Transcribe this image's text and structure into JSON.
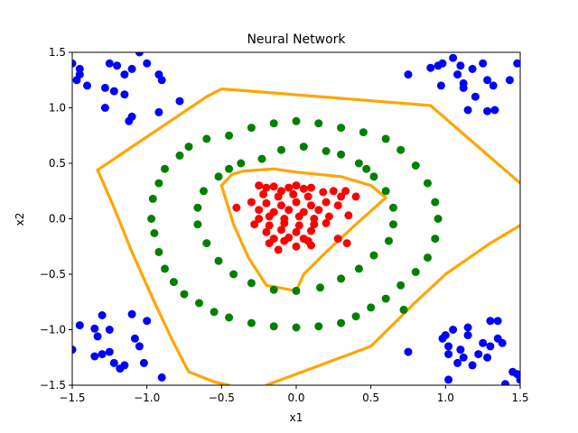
{
  "chart_data": {
    "type": "scatter",
    "title": "Neural Network",
    "xlabel": "x1",
    "ylabel": "x2",
    "xlim": [
      -1.5,
      1.5
    ],
    "ylim": [
      -1.5,
      1.5
    ],
    "xticks": [
      -1.5,
      -1.0,
      -0.5,
      0.0,
      0.5,
      1.0,
      1.5
    ],
    "yticks": [
      -1.5,
      -1.0,
      -0.5,
      0.0,
      0.5,
      1.0,
      1.5
    ],
    "xtick_labels": [
      "−1.5",
      "−1.0",
      "−0.5",
      "0.0",
      "0.5",
      "1.0",
      "1.5"
    ],
    "ytick_labels": [
      "−1.5",
      "−1.0",
      "−0.5",
      "0.0",
      "0.5",
      "1.0",
      "1.5"
    ],
    "grid": false,
    "colors": {
      "blue": "#0000ff",
      "green": "#008000",
      "red": "#ff0000",
      "boundary": "#ffa500"
    },
    "series": [
      {
        "name": "red-cluster",
        "color": "#ff0000",
        "points": [
          [
            -0.25,
            0.3
          ],
          [
            -0.2,
            0.28
          ],
          [
            -0.15,
            0.29
          ],
          [
            -0.1,
            0.25
          ],
          [
            -0.05,
            0.28
          ],
          [
            0.0,
            0.3
          ],
          [
            0.05,
            0.27
          ],
          [
            0.1,
            0.28
          ],
          [
            -0.22,
            0.22
          ],
          [
            -0.12,
            0.2
          ],
          [
            -0.02,
            0.22
          ],
          [
            0.08,
            0.2
          ],
          [
            0.18,
            0.24
          ],
          [
            0.25,
            0.25
          ],
          [
            0.3,
            0.2
          ],
          [
            0.33,
            0.25
          ],
          [
            0.4,
            0.2
          ],
          [
            -0.3,
            0.15
          ],
          [
            -0.2,
            0.14
          ],
          [
            -0.1,
            0.12
          ],
          [
            0.0,
            0.15
          ],
          [
            0.1,
            0.12
          ],
          [
            0.2,
            0.15
          ],
          [
            0.28,
            0.12
          ],
          [
            -0.25,
            0.08
          ],
          [
            -0.15,
            0.06
          ],
          [
            -0.05,
            0.08
          ],
          [
            0.05,
            0.06
          ],
          [
            0.15,
            0.08
          ],
          [
            -0.4,
            0.1
          ],
          [
            -0.25,
            0.0
          ],
          [
            -0.18,
            0.02
          ],
          [
            -0.08,
            0.0
          ],
          [
            0.02,
            0.02
          ],
          [
            0.12,
            0.0
          ],
          [
            0.22,
            0.02
          ],
          [
            0.35,
            0.03
          ],
          [
            -0.28,
            -0.05
          ],
          [
            -0.18,
            -0.06
          ],
          [
            -0.08,
            -0.04
          ],
          [
            0.02,
            -0.06
          ],
          [
            0.12,
            -0.05
          ],
          [
            0.2,
            -0.04
          ],
          [
            -0.2,
            -0.12
          ],
          [
            -0.1,
            -0.1
          ],
          [
            0.0,
            -0.12
          ],
          [
            0.1,
            -0.11
          ],
          [
            -0.15,
            -0.18
          ],
          [
            -0.05,
            -0.17
          ],
          [
            0.05,
            -0.18
          ],
          [
            -0.18,
            -0.22
          ],
          [
            -0.08,
            -0.2
          ],
          [
            0.08,
            -0.2
          ],
          [
            0.28,
            -0.18
          ],
          [
            0.34,
            -0.22
          ],
          [
            0.1,
            -0.24
          ],
          [
            -0.12,
            -0.28
          ],
          [
            0.0,
            -0.25
          ]
        ]
      },
      {
        "name": "green-inner-ring",
        "color": "#008000",
        "points": [
          [
            -0.37,
            0.5
          ],
          [
            -0.23,
            0.54
          ],
          [
            -0.1,
            0.62
          ],
          [
            0.05,
            0.65
          ],
          [
            0.2,
            0.61
          ],
          [
            0.3,
            0.58
          ],
          [
            0.42,
            0.5
          ],
          [
            0.52,
            0.38
          ],
          [
            0.6,
            0.25
          ],
          [
            0.65,
            0.1
          ],
          [
            0.65,
            -0.05
          ],
          [
            0.62,
            -0.2
          ],
          [
            0.52,
            -0.33
          ],
          [
            0.42,
            -0.45
          ],
          [
            0.3,
            -0.54
          ],
          [
            0.16,
            -0.62
          ],
          [
            0.0,
            -0.65
          ],
          [
            -0.15,
            -0.64
          ],
          [
            -0.3,
            -0.58
          ],
          [
            -0.42,
            -0.5
          ],
          [
            -0.52,
            -0.38
          ],
          [
            -0.6,
            -0.22
          ],
          [
            -0.66,
            -0.05
          ],
          [
            -0.66,
            0.1
          ],
          [
            -0.62,
            0.25
          ],
          [
            -0.52,
            0.38
          ],
          [
            -0.45,
            0.45
          ],
          [
            0.47,
            0.45
          ]
        ]
      },
      {
        "name": "green-outer-ring",
        "color": "#008000",
        "points": [
          [
            -0.45,
            0.75
          ],
          [
            -0.3,
            0.82
          ],
          [
            -0.15,
            0.86
          ],
          [
            0.0,
            0.88
          ],
          [
            0.15,
            0.86
          ],
          [
            0.3,
            0.82
          ],
          [
            0.45,
            0.78
          ],
          [
            0.6,
            0.72
          ],
          [
            0.7,
            0.62
          ],
          [
            0.8,
            0.48
          ],
          [
            0.88,
            0.32
          ],
          [
            0.93,
            0.15
          ],
          [
            0.95,
            0.0
          ],
          [
            0.93,
            -0.18
          ],
          [
            0.88,
            -0.35
          ],
          [
            0.8,
            -0.48
          ],
          [
            0.7,
            -0.6
          ],
          [
            0.6,
            -0.72
          ],
          [
            0.5,
            -0.8
          ],
          [
            0.4,
            -0.88
          ],
          [
            0.3,
            -0.94
          ],
          [
            0.15,
            -0.97
          ],
          [
            0.0,
            -0.98
          ],
          [
            -0.15,
            -0.97
          ],
          [
            -0.3,
            -0.94
          ],
          [
            -0.45,
            -0.89
          ],
          [
            -0.55,
            -0.84
          ],
          [
            -0.65,
            -0.76
          ],
          [
            -0.75,
            -0.68
          ],
          [
            -0.82,
            -0.57
          ],
          [
            -0.88,
            -0.45
          ],
          [
            -0.92,
            -0.3
          ],
          [
            -0.95,
            -0.13
          ],
          [
            -0.97,
            0.0
          ],
          [
            -0.96,
            0.18
          ],
          [
            -0.92,
            0.32
          ],
          [
            -0.88,
            0.45
          ],
          [
            -0.78,
            0.57
          ],
          [
            -0.72,
            0.65
          ],
          [
            -0.6,
            0.72
          ],
          [
            0.72,
            -0.82
          ]
        ]
      },
      {
        "name": "blue-corners",
        "color": "#0000ff",
        "points": [
          [
            -1.5,
            1.4
          ],
          [
            -1.45,
            1.35
          ],
          [
            -1.45,
            1.3
          ],
          [
            -1.47,
            1.25
          ],
          [
            -1.4,
            1.2
          ],
          [
            -1.25,
            1.4
          ],
          [
            -1.2,
            1.38
          ],
          [
            -1.15,
            1.3
          ],
          [
            -1.1,
            1.35
          ],
          [
            -1.05,
            1.5
          ],
          [
            -1.0,
            1.4
          ],
          [
            -1.28,
            1.18
          ],
          [
            -1.22,
            1.15
          ],
          [
            -1.15,
            1.12
          ],
          [
            -1.28,
            1.0
          ],
          [
            -1.1,
            0.92
          ],
          [
            -1.12,
            0.88
          ],
          [
            -0.92,
            1.3
          ],
          [
            -0.9,
            1.25
          ],
          [
            -0.92,
            0.96
          ],
          [
            -0.78,
            1.06
          ],
          [
            0.75,
            1.3
          ],
          [
            0.9,
            1.36
          ],
          [
            0.95,
            1.38
          ],
          [
            0.98,
            1.4
          ],
          [
            1.05,
            1.45
          ],
          [
            1.1,
            1.38
          ],
          [
            0.97,
            1.2
          ],
          [
            1.08,
            1.3
          ],
          [
            1.12,
            1.22
          ],
          [
            1.12,
            1.18
          ],
          [
            1.18,
            1.35
          ],
          [
            1.25,
            1.4
          ],
          [
            1.28,
            1.25
          ],
          [
            1.2,
            1.1
          ],
          [
            1.32,
            1.2
          ],
          [
            1.43,
            1.25
          ],
          [
            1.48,
            1.4
          ],
          [
            1.15,
            0.98
          ],
          [
            1.28,
            0.97
          ],
          [
            1.33,
            0.98
          ],
          [
            -1.5,
            -1.18
          ],
          [
            -1.45,
            -0.96
          ],
          [
            -1.35,
            -0.99
          ],
          [
            -1.33,
            -1.06
          ],
          [
            -1.3,
            -0.87
          ],
          [
            -1.35,
            -1.24
          ],
          [
            -1.3,
            -1.22
          ],
          [
            -1.25,
            -1.0
          ],
          [
            -1.25,
            -1.2
          ],
          [
            -1.22,
            -1.3
          ],
          [
            -1.18,
            -1.35
          ],
          [
            -1.15,
            -1.32
          ],
          [
            -1.1,
            -0.86
          ],
          [
            -1.08,
            -1.08
          ],
          [
            -1.05,
            -1.15
          ],
          [
            -1.0,
            -0.92
          ],
          [
            -1.02,
            -1.3
          ],
          [
            -0.9,
            -1.43
          ],
          [
            0.75,
            -1.2
          ],
          [
            0.98,
            -1.08
          ],
          [
            1.0,
            -1.05
          ],
          [
            1.02,
            -1.15
          ],
          [
            1.02,
            -1.22
          ],
          [
            1.05,
            -1.0
          ],
          [
            1.08,
            -1.3
          ],
          [
            1.1,
            -1.18
          ],
          [
            1.12,
            -1.25
          ],
          [
            1.15,
            -1.05
          ],
          [
            1.15,
            -0.98
          ],
          [
            1.18,
            -1.32
          ],
          [
            1.22,
            -1.22
          ],
          [
            1.25,
            -1.12
          ],
          [
            1.28,
            -1.25
          ],
          [
            1.3,
            -1.15
          ],
          [
            1.3,
            -0.92
          ],
          [
            1.35,
            -0.92
          ],
          [
            1.35,
            -1.08
          ],
          [
            1.38,
            -1.12
          ],
          [
            1.45,
            -1.38
          ],
          [
            1.48,
            -1.4
          ],
          [
            1.5,
            -1.45
          ],
          [
            1.02,
            -1.45
          ],
          [
            1.4,
            -1.49
          ]
        ]
      }
    ],
    "boundaries": [
      {
        "name": "outer-boundary",
        "color": "#ffa500",
        "points": [
          [
            -1.33,
            0.44
          ],
          [
            -0.6,
            1.1
          ],
          [
            -0.5,
            1.17
          ],
          [
            -0.3,
            1.15
          ],
          [
            0.9,
            1.02
          ],
          [
            1.5,
            0.32
          ]
        ]
      },
      {
        "name": "outer-boundary-lower",
        "color": "#ffa500",
        "points": [
          [
            -1.33,
            0.44
          ],
          [
            -1.22,
            0.1
          ],
          [
            -1.1,
            -0.3
          ],
          [
            -0.95,
            -0.75
          ],
          [
            -0.82,
            -1.12
          ],
          [
            -0.72,
            -1.38
          ],
          [
            -0.55,
            -1.47
          ],
          [
            -0.45,
            -1.5
          ]
        ]
      },
      {
        "name": "outer-boundary-lower-right",
        "color": "#ffa500",
        "points": [
          [
            -0.2,
            -1.5
          ],
          [
            0.0,
            -1.4
          ],
          [
            0.5,
            -1.15
          ],
          [
            0.8,
            -0.75
          ],
          [
            1.0,
            -0.5
          ],
          [
            1.3,
            -0.22
          ],
          [
            1.5,
            -0.06
          ]
        ]
      },
      {
        "name": "inner-boundary",
        "color": "#ffa500",
        "points": [
          [
            -0.5,
            0.3
          ],
          [
            -0.43,
            0.4
          ],
          [
            -0.35,
            0.43
          ],
          [
            -0.15,
            0.45
          ],
          [
            0.0,
            0.42
          ],
          [
            0.3,
            0.38
          ],
          [
            0.5,
            0.3
          ],
          [
            0.6,
            0.19
          ],
          [
            0.4,
            -0.05
          ],
          [
            0.2,
            -0.3
          ],
          [
            0.05,
            -0.5
          ],
          [
            0.0,
            -0.65
          ],
          [
            -0.2,
            -0.6
          ],
          [
            -0.32,
            -0.35
          ],
          [
            -0.42,
            -0.05
          ],
          [
            -0.5,
            0.3
          ]
        ]
      }
    ]
  }
}
